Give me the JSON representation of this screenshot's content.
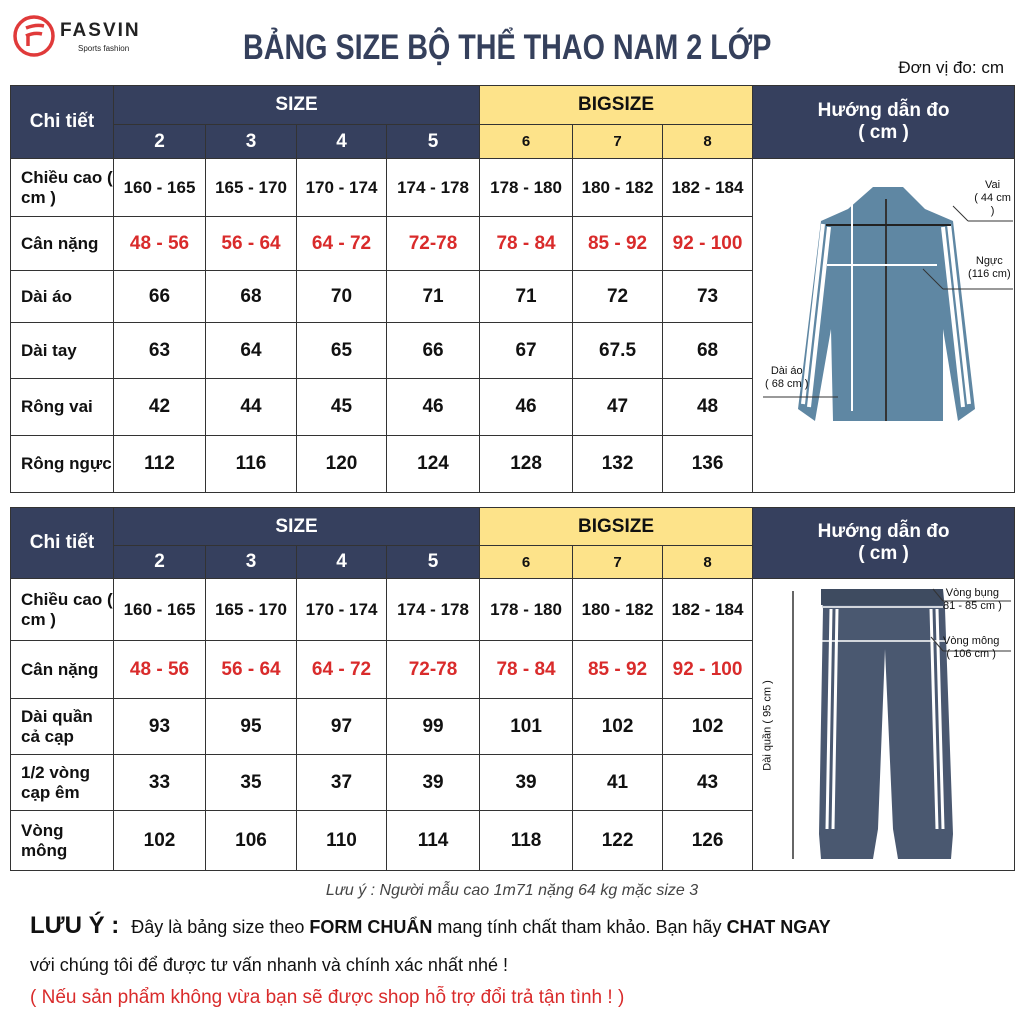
{
  "brand": {
    "name": "FASVIN",
    "tagline": "Sports fashion",
    "color": "#e03a3a"
  },
  "title": "BẢNG SIZE BỘ THỂ THAO NAM 2 LỚP",
  "unit": "Đơn vị đo: cm",
  "colors": {
    "header": "#36405e",
    "bigsize": "#fde38a",
    "highlight": "#d92b2b"
  },
  "jacket_table": {
    "detail_header": "Chi tiết",
    "size_header": "SIZE",
    "bigsize_header": "BIGSIZE",
    "guide_header": "Hướng dẫn đo",
    "guide_unit": "( cm )",
    "sizes": [
      "2",
      "3",
      "4",
      "5",
      "6",
      "7",
      "8"
    ],
    "rows": [
      {
        "label": "Chiều cao ( cm )",
        "values": [
          "160 - 165",
          "165 - 170",
          "170 - 174",
          "174 - 178",
          "178 - 180",
          "180 - 182",
          "182 - 184"
        ]
      },
      {
        "label": "Cân nặng",
        "values": [
          "48 - 56",
          "56 - 64",
          "64 - 72",
          "72-78",
          "78 - 84",
          "85 - 92",
          "92 - 100"
        ],
        "highlight": true
      },
      {
        "label": "Dài áo",
        "values": [
          "66",
          "68",
          "70",
          "71",
          "71",
          "72",
          "73"
        ]
      },
      {
        "label": "Dài tay",
        "values": [
          "63",
          "64",
          "65",
          "66",
          "67",
          "67.5",
          "68"
        ]
      },
      {
        "label": "Rông vai",
        "values": [
          "42",
          "44",
          "45",
          "46",
          "46",
          "47",
          "48"
        ]
      },
      {
        "label": "Rông ngực",
        "values": [
          "112",
          "116",
          "120",
          "124",
          "128",
          "132",
          "136"
        ]
      }
    ],
    "annotations": {
      "vai": "Vai",
      "vai_v": "( 44 cm )",
      "nguc": "Ngực",
      "nguc_v": "(116 cm)",
      "dai": "Dài áo",
      "dai_v": "( 68 cm )"
    }
  },
  "pants_table": {
    "detail_header": "Chi tiết",
    "size_header": "SIZE",
    "bigsize_header": "BIGSIZE",
    "guide_header": "Hướng dẫn đo",
    "guide_unit": "( cm )",
    "sizes": [
      "2",
      "3",
      "4",
      "5",
      "6",
      "7",
      "8"
    ],
    "rows": [
      {
        "label": "Chiều cao ( cm )",
        "values": [
          "160 - 165",
          "165 - 170",
          "170 - 174",
          "174 - 178",
          "178 - 180",
          "180 - 182",
          "182 - 184"
        ]
      },
      {
        "label": "Cân nặng",
        "values": [
          "48 - 56",
          "56 - 64",
          "64 - 72",
          "72-78",
          "78 - 84",
          "85 - 92",
          "92 - 100"
        ],
        "highlight": true
      },
      {
        "label": "Dài quần cả cạp",
        "values": [
          "93",
          "95",
          "97",
          "99",
          "101",
          "102",
          "102"
        ]
      },
      {
        "label": "1/2 vòng cạp êm",
        "values": [
          "33",
          "35",
          "37",
          "39",
          "39",
          "41",
          "43"
        ]
      },
      {
        "label": "Vòng mông",
        "values": [
          "102",
          "106",
          "110",
          "114",
          "118",
          "122",
          "126"
        ]
      }
    ],
    "annotations": {
      "bung": "Vòng bụng",
      "bung_v": "81 - 85 cm )",
      "mong": "Vòng mông",
      "mong_v": "( 106 cm )",
      "dai": "Dài quần ( 95 cm )"
    }
  },
  "footer": {
    "model_note": "Lưu ý : Người mẫu cao 1m71 nặng 64 kg mặc size 3",
    "notice_label": "LƯU Ý :",
    "notice_a": "Đây là bảng size theo ",
    "notice_b": "FORM CHUẨN",
    "notice_c": " mang tính chất tham khảo. Bạn hãy ",
    "notice_d": "CHAT NGAY",
    "line2": "với chúng tôi để được tư vấn nhanh và chính xác nhất nhé !",
    "line3": "( Nếu sản phẩm không vừa bạn sẽ được shop hỗ trợ đổi trả tận tình ! )"
  }
}
